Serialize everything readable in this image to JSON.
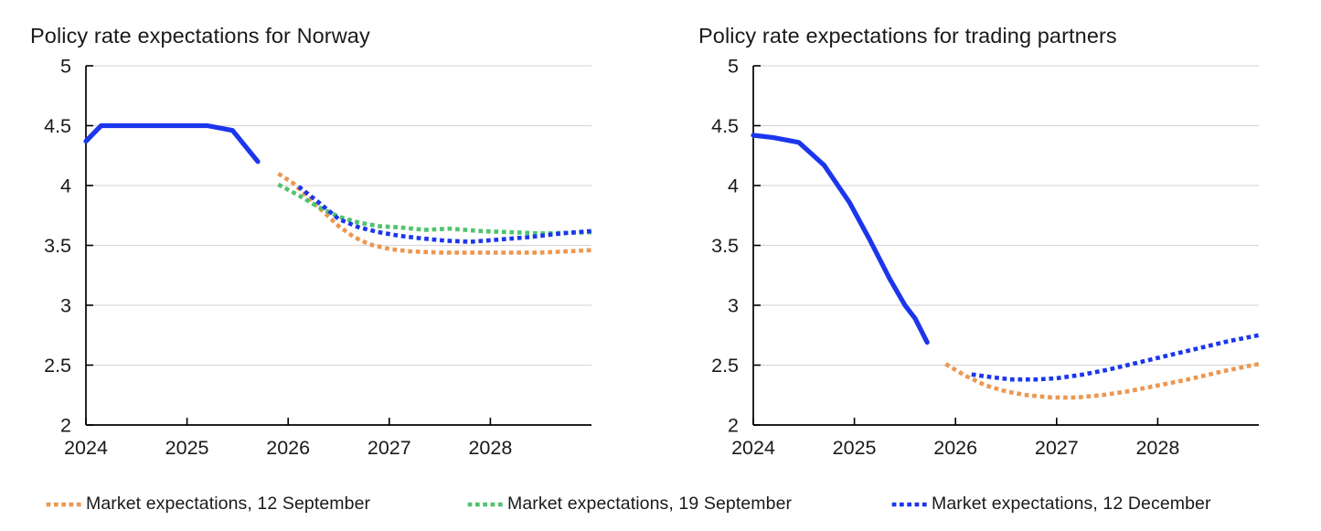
{
  "colors": {
    "blue": "#1b36ec",
    "orange": "#ec9751",
    "green": "#4fc36e",
    "grid": "#d9d9d9",
    "axis": "#000000",
    "text": "#1a1a1a"
  },
  "legend": {
    "items": [
      {
        "label": "Market expectations, 12 September",
        "color_key": "orange"
      },
      {
        "label": "Market expectations, 19 September",
        "color_key": "green"
      },
      {
        "label": "Market expectations, 12 December",
        "color_key": "blue"
      }
    ]
  },
  "chart_data": [
    {
      "type": "line",
      "title": "Policy rate expectations for Norway",
      "xlim": [
        2024,
        2029
      ],
      "ylim": [
        2,
        5
      ],
      "yticks": [
        2,
        2.5,
        3,
        3.5,
        4,
        4.5,
        5
      ],
      "ytick_labels": [
        "2",
        "2.5",
        "3",
        "3.5",
        "4",
        "4.5",
        "5"
      ],
      "xticks": [
        2024,
        2025,
        2026,
        2027,
        2028
      ],
      "xtick_labels": [
        "2024",
        "2025",
        "2026",
        "2027",
        "2028"
      ],
      "grid": "horizontal",
      "legend_position": "bottom",
      "series": [
        {
          "name": "historical",
          "style": "solid",
          "color_key": "blue",
          "points": [
            [
              2024.0,
              4.37
            ],
            [
              2024.15,
              4.5
            ],
            [
              2024.5,
              4.5
            ],
            [
              2025.0,
              4.5
            ],
            [
              2025.2,
              4.5
            ],
            [
              2025.45,
              4.46
            ],
            [
              2025.7,
              4.2
            ]
          ]
        },
        {
          "name": "Market expectations, 12 September",
          "style": "dotted",
          "color_key": "orange",
          "points": [
            [
              2025.92,
              4.09
            ],
            [
              2026.05,
              4.02
            ],
            [
              2026.2,
              3.9
            ],
            [
              2026.35,
              3.78
            ],
            [
              2026.5,
              3.66
            ],
            [
              2026.65,
              3.57
            ],
            [
              2026.8,
              3.51
            ],
            [
              2027.0,
              3.47
            ],
            [
              2027.2,
              3.45
            ],
            [
              2027.5,
              3.44
            ],
            [
              2028.0,
              3.44
            ],
            [
              2028.5,
              3.44
            ],
            [
              2029.0,
              3.46
            ]
          ]
        },
        {
          "name": "Market expectations, 19 September",
          "style": "dotted",
          "color_key": "green",
          "points": [
            [
              2025.92,
              4.0
            ],
            [
              2026.1,
              3.92
            ],
            [
              2026.3,
              3.82
            ],
            [
              2026.5,
              3.74
            ],
            [
              2026.7,
              3.69
            ],
            [
              2026.9,
              3.66
            ],
            [
              2027.1,
              3.65
            ],
            [
              2027.35,
              3.63
            ],
            [
              2027.6,
              3.64
            ],
            [
              2027.9,
              3.62
            ],
            [
              2028.2,
              3.61
            ],
            [
              2028.5,
              3.6
            ],
            [
              2029.0,
              3.61
            ]
          ]
        },
        {
          "name": "Market expectations, 12 December",
          "style": "dotted",
          "color_key": "blue",
          "points": [
            [
              2026.12,
              3.98
            ],
            [
              2026.3,
              3.86
            ],
            [
              2026.5,
              3.72
            ],
            [
              2026.7,
              3.65
            ],
            [
              2026.9,
              3.61
            ],
            [
              2027.1,
              3.58
            ],
            [
              2027.3,
              3.56
            ],
            [
              2027.55,
              3.54
            ],
            [
              2027.8,
              3.53
            ],
            [
              2028.1,
              3.55
            ],
            [
              2028.4,
              3.57
            ],
            [
              2028.7,
              3.6
            ],
            [
              2029.0,
              3.62
            ]
          ]
        }
      ]
    },
    {
      "type": "line",
      "title": "Policy rate expectations for trading partners",
      "xlim": [
        2024,
        2029
      ],
      "ylim": [
        2,
        5
      ],
      "yticks": [
        2,
        2.5,
        3,
        3.5,
        4,
        4.5,
        5
      ],
      "ytick_labels": [
        "2",
        "2.5",
        "3",
        "3.5",
        "4",
        "4.5",
        "5"
      ],
      "xticks": [
        2024,
        2025,
        2026,
        2027,
        2028
      ],
      "xtick_labels": [
        "2024",
        "2025",
        "2026",
        "2027",
        "2028"
      ],
      "grid": "horizontal",
      "legend_position": "bottom",
      "series": [
        {
          "name": "historical",
          "style": "solid",
          "color_key": "blue",
          "points": [
            [
              2024.0,
              4.42
            ],
            [
              2024.2,
              4.4
            ],
            [
              2024.45,
              4.36
            ],
            [
              2024.7,
              4.17
            ],
            [
              2024.95,
              3.86
            ],
            [
              2025.15,
              3.55
            ],
            [
              2025.35,
              3.22
            ],
            [
              2025.5,
              3.0
            ],
            [
              2025.6,
              2.89
            ],
            [
              2025.72,
              2.69
            ]
          ]
        },
        {
          "name": "Market expectations, 12 September",
          "style": "dotted",
          "color_key": "orange",
          "points": [
            [
              2025.92,
              2.5
            ],
            [
              2026.1,
              2.41
            ],
            [
              2026.3,
              2.33
            ],
            [
              2026.5,
              2.28
            ],
            [
              2026.7,
              2.25
            ],
            [
              2026.95,
              2.23
            ],
            [
              2027.2,
              2.23
            ],
            [
              2027.45,
              2.25
            ],
            [
              2027.7,
              2.28
            ],
            [
              2028.0,
              2.33
            ],
            [
              2028.3,
              2.38
            ],
            [
              2028.65,
              2.45
            ],
            [
              2029.0,
              2.51
            ]
          ]
        },
        {
          "name": "Market expectations, 12 December",
          "style": "dotted",
          "color_key": "blue",
          "points": [
            [
              2026.18,
              2.42
            ],
            [
              2026.35,
              2.4
            ],
            [
              2026.55,
              2.38
            ],
            [
              2026.8,
              2.38
            ],
            [
              2027.0,
              2.39
            ],
            [
              2027.25,
              2.42
            ],
            [
              2027.5,
              2.46
            ],
            [
              2027.8,
              2.52
            ],
            [
              2028.1,
              2.58
            ],
            [
              2028.4,
              2.64
            ],
            [
              2028.7,
              2.7
            ],
            [
              2029.0,
              2.75
            ]
          ]
        }
      ]
    }
  ]
}
